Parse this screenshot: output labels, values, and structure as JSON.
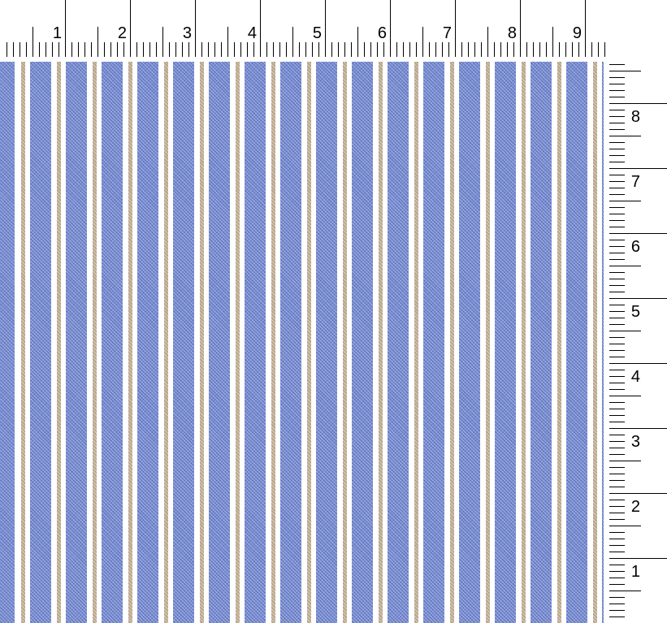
{
  "top_ruler": {
    "labels": [
      "1",
      "2",
      "3",
      "4",
      "5",
      "6",
      "7",
      "8",
      "9"
    ]
  },
  "right_ruler": {
    "labels": [
      "1",
      "2",
      "3",
      "4",
      "5",
      "6",
      "7",
      "8"
    ]
  },
  "fabric": {
    "pattern": "vertical stripes",
    "colors": {
      "blue": "#7489cf",
      "tan": "#b9a68a",
      "ground": "#ffffff"
    }
  }
}
